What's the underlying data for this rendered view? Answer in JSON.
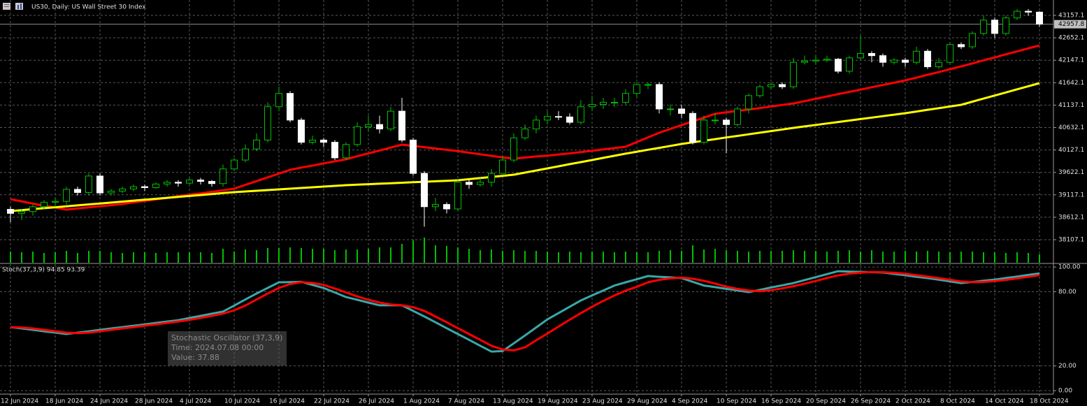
{
  "chart_data": {
    "type": "candlestick",
    "title": "US30, Daily:  US Wall Street 30 Index",
    "categories": [
      "12 Jun 2024",
      null,
      null,
      null,
      "18 Jun 2024",
      null,
      null,
      null,
      "24 Jun 2024",
      null,
      null,
      null,
      "28 Jun 2024",
      null,
      null,
      null,
      "4 Jul 2024",
      null,
      null,
      null,
      "10 Jul 2024",
      null,
      null,
      null,
      "16 Jul 2024",
      null,
      null,
      null,
      "22 Jul 2024",
      null,
      null,
      null,
      "26 Jul 2024",
      null,
      null,
      null,
      "1 Aug 2024",
      null,
      null,
      null,
      "7 Aug 2024",
      null,
      null,
      null,
      "13 Aug 2024",
      null,
      null,
      null,
      "19 Aug 2024",
      null,
      null,
      null,
      "23 Aug 2024",
      null,
      null,
      null,
      "29 Aug 2024",
      null,
      null,
      null,
      "4 Sep 2024",
      null,
      null,
      null,
      "10 Sep 2024",
      null,
      null,
      null,
      "16 Sep 2024",
      null,
      null,
      null,
      "20 Sep 2024",
      null,
      null,
      null,
      "26 Sep 2024",
      null,
      null,
      null,
      "2 Oct 2024",
      null,
      null,
      null,
      "8 Oct 2024",
      null,
      null,
      null,
      "14 Oct 2024",
      null,
      null,
      null,
      "18 Oct 2024"
    ],
    "open": [
      38790,
      38700,
      38740,
      38850,
      38950,
      38970,
      39240,
      39170,
      39540,
      39160,
      39200,
      39250,
      39300,
      39280,
      39360,
      39400,
      39380,
      39450,
      39420,
      39370,
      39700,
      39900,
      40150,
      40350,
      41100,
      41400,
      40800,
      40300,
      40350,
      40300,
      39950,
      40250,
      40650,
      40700,
      40600,
      41000,
      40350,
      39600,
      38850,
      38900,
      38800,
      39400,
      39350,
      39400,
      39600,
      39900,
      40400,
      40600,
      40800,
      40880,
      40870,
      40750,
      41100,
      41150,
      41200,
      41200,
      41400,
      41600,
      41600,
      41050,
      41050,
      40950,
      40300,
      40800,
      40800,
      40700,
      41050,
      41350,
      41550,
      41600,
      41550,
      42100,
      42130,
      42150,
      42170,
      41900,
      42200,
      42300,
      42250,
      42100,
      42150,
      42100,
      42350,
      42000,
      42100,
      42500,
      42450,
      42750,
      43050,
      42750,
      43100,
      43250,
      43230
    ],
    "high": [
      38850,
      38800,
      38900,
      39000,
      39050,
      39300,
      39300,
      39600,
      39600,
      39250,
      39300,
      39350,
      39350,
      39400,
      39450,
      39450,
      39500,
      39500,
      39450,
      39800,
      39950,
      40250,
      40500,
      41200,
      41550,
      41450,
      40850,
      40450,
      40400,
      40350,
      40300,
      40750,
      40900,
      40900,
      41100,
      41300,
      40400,
      39650,
      39050,
      38950,
      39450,
      39450,
      39500,
      39700,
      40000,
      40500,
      40700,
      40900,
      41000,
      41000,
      40950,
      41250,
      41350,
      41300,
      41300,
      41500,
      41650,
      41650,
      41650,
      41150,
      41150,
      41000,
      40900,
      40950,
      40850,
      41100,
      41400,
      41600,
      41650,
      41650,
      42200,
      42250,
      42250,
      42250,
      42200,
      42250,
      42700,
      42350,
      42300,
      42200,
      42200,
      42450,
      42400,
      42200,
      42550,
      42550,
      42800,
      43150,
      43100,
      43150,
      43300,
      43300,
      43250
    ],
    "low": [
      38500,
      38550,
      38650,
      38800,
      38850,
      38900,
      39100,
      39100,
      39100,
      39100,
      39150,
      39200,
      39200,
      39250,
      39300,
      39300,
      39350,
      39350,
      39300,
      39300,
      39650,
      39850,
      40100,
      40300,
      41000,
      40750,
      40250,
      40250,
      40200,
      39900,
      39900,
      40200,
      40550,
      40500,
      40550,
      40300,
      39550,
      38400,
      38750,
      38700,
      38750,
      39250,
      39300,
      39300,
      39550,
      39850,
      40350,
      40500,
      40700,
      40800,
      40700,
      40700,
      41000,
      41050,
      41100,
      41150,
      41300,
      41500,
      40950,
      40900,
      40850,
      40250,
      40250,
      40700,
      40050,
      40650,
      40950,
      41300,
      41500,
      41500,
      41500,
      42050,
      42050,
      42100,
      41850,
      41850,
      42150,
      42100,
      42000,
      42050,
      42000,
      42050,
      41950,
      41950,
      42050,
      42400,
      42400,
      42700,
      42650,
      42700,
      43050,
      43150,
      42900
    ],
    "close": [
      38700,
      38740,
      38850,
      38950,
      38970,
      39240,
      39170,
      39540,
      39160,
      39200,
      39250,
      39300,
      39280,
      39360,
      39400,
      39380,
      39450,
      39420,
      39370,
      39700,
      39900,
      40150,
      40350,
      41100,
      41400,
      40800,
      40300,
      40350,
      40300,
      39950,
      40250,
      40650,
      40700,
      40600,
      41000,
      40350,
      39600,
      38850,
      38900,
      38800,
      39400,
      39350,
      39400,
      39600,
      39900,
      40400,
      40600,
      40800,
      40880,
      40870,
      40750,
      41100,
      41150,
      41200,
      41200,
      41400,
      41600,
      41600,
      41050,
      41050,
      40950,
      40300,
      40800,
      40800,
      40700,
      41050,
      41350,
      41550,
      41600,
      41550,
      42100,
      42130,
      42150,
      42170,
      41900,
      42200,
      42300,
      42250,
      42100,
      42150,
      42100,
      42350,
      42000,
      42100,
      42500,
      42450,
      42750,
      43050,
      42750,
      43100,
      43250,
      43230,
      42960
    ],
    "up_color": "#00c000",
    "down_color": "#ffffff",
    "ylim": [
      37588,
      43503
    ],
    "yticks": [
      43157.1,
      42652.1,
      42147.1,
      41642.1,
      41137.1,
      40632.1,
      40127.1,
      39622.1,
      39117.1,
      38612.1,
      38107.1
    ],
    "current_price": 42957.8,
    "grid": true,
    "volume": {
      "color": "#00c000",
      "values": [
        16,
        15,
        16,
        14,
        15,
        17,
        14,
        17,
        17,
        15,
        14,
        15,
        15,
        14,
        15,
        15,
        15,
        15,
        14,
        20,
        16,
        19,
        18,
        21,
        21,
        22,
        21,
        20,
        20,
        18,
        19,
        19,
        20,
        22,
        22,
        27,
        32,
        36,
        25,
        24,
        22,
        20,
        18,
        19,
        17,
        18,
        17,
        17,
        16,
        15,
        16,
        15,
        16,
        16,
        15,
        16,
        15,
        15,
        17,
        18,
        17,
        25,
        19,
        20,
        18,
        17,
        16,
        17,
        17,
        17,
        18,
        17,
        17,
        16,
        17,
        18,
        16,
        18,
        16,
        16,
        17,
        16,
        17,
        16,
        15,
        16,
        16,
        15,
        15,
        14,
        15,
        14,
        12
      ]
    },
    "overlays": [
      {
        "color": "#ff0000",
        "values": [
          39020,
          38970,
          38920,
          38870,
          38830,
          38784,
          38810,
          38835,
          38860,
          38885,
          38910,
          38945,
          38980,
          39015,
          39050,
          39085,
          39120,
          39150,
          39185,
          39220,
          39256,
          39340,
          39425,
          39510,
          39595,
          39680,
          39730,
          39775,
          39825,
          39870,
          39917,
          39985,
          40050,
          40115,
          40180,
          40247,
          40220,
          40190,
          40160,
          40130,
          40100,
          40065,
          40030,
          39995,
          39960,
          39932,
          39955,
          39980,
          40000,
          40025,
          40050,
          40080,
          40110,
          40140,
          40170,
          40200,
          40305,
          40410,
          40514,
          40600,
          40685,
          40770,
          40855,
          40940,
          40975,
          41005,
          41040,
          41070,
          41105,
          41140,
          41175,
          41225,
          41280,
          41330,
          41385,
          41435,
          41485,
          41540,
          41590,
          41640,
          41694,
          41755,
          41820,
          41880,
          41945,
          42009,
          42075,
          42145,
          42210,
          42280,
          42345,
          42415,
          42480
        ]
      },
      {
        "color": "#ffff00",
        "values": [
          38752,
          38773,
          38795,
          38816,
          38837,
          38858,
          38880,
          38901,
          38922,
          38943,
          38965,
          38986,
          39007,
          39028,
          39050,
          39071,
          39092,
          39113,
          39135,
          39156,
          39177,
          39193,
          39209,
          39224,
          39240,
          39256,
          39271,
          39287,
          39303,
          39318,
          39334,
          39345,
          39356,
          39367,
          39378,
          39390,
          39401,
          39412,
          39423,
          39434,
          39445,
          39470,
          39495,
          39520,
          39545,
          39570,
          39617,
          39665,
          39712,
          39759,
          39807,
          39854,
          39901,
          39949,
          39996,
          40043,
          40087,
          40131,
          40175,
          40219,
          40263,
          40299,
          40335,
          40371,
          40408,
          40444,
          40480,
          40516,
          40552,
          40588,
          40624,
          40657,
          40690,
          40723,
          40756,
          40790,
          40823,
          40856,
          40889,
          40922,
          40955,
          40993,
          41031,
          41068,
          41106,
          41144,
          41214,
          41283,
          41353,
          41422,
          41492,
          41561,
          41631
        ]
      }
    ],
    "indicator": {
      "label": "Stoch(37,3,9) 94.85 93.39",
      "ylim": [
        -2.8,
        102.3
      ],
      "yticks": [
        {
          "value": 100,
          "label": "100.00"
        },
        {
          "value": 80,
          "label": "80.00"
        },
        {
          "value": 20,
          "label": "20.00"
        },
        {
          "value": 0,
          "label": "0.00"
        }
      ],
      "series": [
        {
          "color": "#3ba7a7",
          "values": [
            51.4,
            50.3,
            49.2,
            48.0,
            46.9,
            45.8,
            46.9,
            48.0,
            49.2,
            50.3,
            51.4,
            52.5,
            53.6,
            54.8,
            55.9,
            57.0,
            58.8,
            60.5,
            62.3,
            64.0,
            68.8,
            73.7,
            78.5,
            83.1,
            87.6,
            87.8,
            88.0,
            85.5,
            83.0,
            79.4,
            75.7,
            73.5,
            71.2,
            69.0,
            69.0,
            69.0,
            64.5,
            60.0,
            55.3,
            50.5,
            45.8,
            41.1,
            36.3,
            31.6,
            32.0,
            38.3,
            44.6,
            51.1,
            57.6,
            62.7,
            67.9,
            73.0,
            77.0,
            81.0,
            85.0,
            87.6,
            90.1,
            92.7,
            92.1,
            91.6,
            91.0,
            88.0,
            85.0,
            83.7,
            82.3,
            81.0,
            79.7,
            81.5,
            83.4,
            85.2,
            87.0,
            89.4,
            91.8,
            94.2,
            96.6,
            96.3,
            96.1,
            95.8,
            95.5,
            94.4,
            93.3,
            92.1,
            91.0,
            89.7,
            88.3,
            87.0,
            87.9,
            88.9,
            89.8,
            91.1,
            92.3,
            93.6,
            94.85
          ]
        },
        {
          "color": "#ff0000",
          "values": [
            51.4,
            51.0,
            50.3,
            49.2,
            48.0,
            46.9,
            46.5,
            46.9,
            48.0,
            49.2,
            50.3,
            51.4,
            52.5,
            53.6,
            54.8,
            55.9,
            57.2,
            58.8,
            60.5,
            62.3,
            65.0,
            68.8,
            73.7,
            78.5,
            83.1,
            86.2,
            87.8,
            87.1,
            85.5,
            82.6,
            79.4,
            76.2,
            73.5,
            71.2,
            69.7,
            69.0,
            67.5,
            64.5,
            59.9,
            55.3,
            50.5,
            45.8,
            41.1,
            36.3,
            33.3,
            32.6,
            35.0,
            40.7,
            46.2,
            51.8,
            57.4,
            62.7,
            67.9,
            72.6,
            77.0,
            80.9,
            84.0,
            87.6,
            89.6,
            90.8,
            91.4,
            90.5,
            88.8,
            86.6,
            84.1,
            82.3,
            81.0,
            80.5,
            81.2,
            82.7,
            84.5,
            86.5,
            88.7,
            91.1,
            93.2,
            94.7,
            95.4,
            95.9,
            95.8,
            95.3,
            94.6,
            93.4,
            92.2,
            91.0,
            89.7,
            88.3,
            87.7,
            87.9,
            88.6,
            89.6,
            90.8,
            92.0,
            93.39
          ]
        }
      ],
      "tooltip": [
        "Stochastic Oscillator (37,3,9)",
        "Time: 2024.07.08 00:00",
        "Value: 37.88"
      ]
    }
  }
}
